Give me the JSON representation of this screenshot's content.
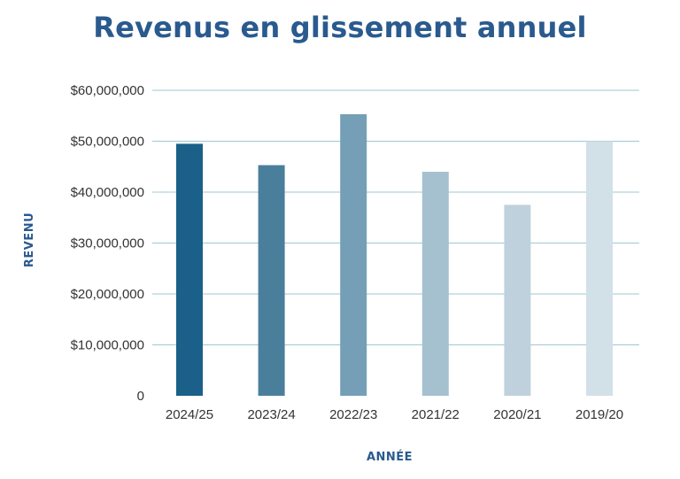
{
  "chart_data": {
    "type": "bar",
    "title": "Revenus en glissement annuel",
    "xlabel": "ANNÉE",
    "ylabel": "REVENU",
    "categories": [
      "2024/25",
      "2023/24",
      "2022/23",
      "2021/22",
      "2020/21",
      "2019/20"
    ],
    "values": [
      49500000,
      45300000,
      55300000,
      44000000,
      37500000,
      50000000
    ],
    "colors": [
      "#1a6088",
      "#4a7f9c",
      "#749fb6",
      "#a5c1d0",
      "#bfd1dd",
      "#d2e0e8"
    ],
    "ylim": [
      0,
      60000000
    ],
    "yticks": [
      0,
      10000000,
      20000000,
      30000000,
      40000000,
      50000000,
      60000000
    ],
    "ytick_labels": [
      "0",
      "$10,000,000",
      "$20,000,000",
      "$30,000,000",
      "$40,000,000",
      "$50,000,000",
      "$60,000,000"
    ],
    "grid": true,
    "gridline_color": "#9ec9d2"
  }
}
